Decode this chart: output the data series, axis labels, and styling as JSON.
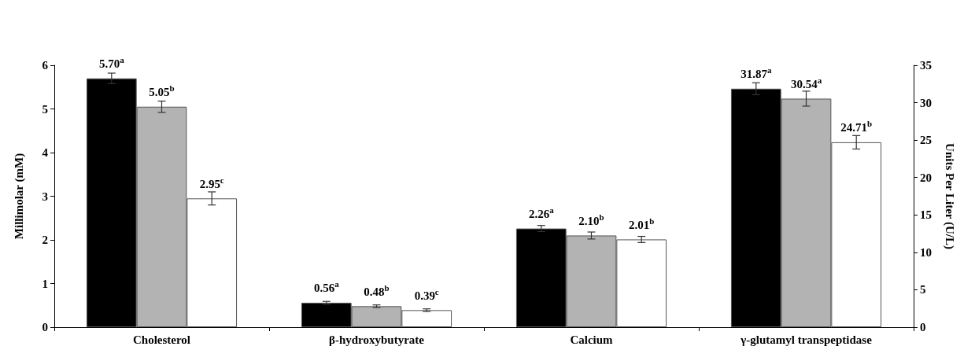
{
  "chart_data": {
    "type": "bar",
    "ylabel": "Millimolar (mM)",
    "y2label": "Units Per Liter (U/L)",
    "categories": [
      "Cholesterol",
      "β-hydroxybutyrate",
      "Calcium",
      "γ-glutamyl transpeptidase"
    ],
    "ylim": [
      0,
      6
    ],
    "yticks": [
      0,
      1,
      2,
      3,
      4,
      5,
      6
    ],
    "y2lim": [
      0,
      35
    ],
    "y2ticks": [
      0,
      5,
      10,
      15,
      20,
      25,
      30,
      35
    ],
    "series": [
      {
        "color": "#000000",
        "axis": "y",
        "values": [
          5.7,
          0.56,
          2.26,
          null
        ],
        "errors": [
          0.12,
          0.03,
          0.07,
          null
        ],
        "value_labels": [
          "5.70$^{a}$",
          "0.56$^{a}$",
          "2.26$^{a}$",
          null
        ]
      },
      {
        "color": "#b3b3b3",
        "axis": "y",
        "values": [
          5.05,
          0.48,
          2.1,
          null
        ],
        "errors": [
          0.13,
          0.03,
          0.08,
          null
        ],
        "value_labels": [
          "5.05$^{b}$",
          "0.48$^{b}$",
          "2.10$^{b}$",
          null
        ]
      },
      {
        "color": "#ffffff",
        "axis": "y",
        "values": [
          2.95,
          0.39,
          2.01,
          null
        ],
        "errors": [
          0.15,
          0.03,
          0.07,
          null
        ],
        "value_labels": [
          "2.95$^{c}$",
          "0.39$^{c}$",
          "2.01$^{b}$",
          null
        ]
      },
      {
        "color": "#000000",
        "axis": "y2",
        "values": [
          null,
          null,
          null,
          31.87
        ],
        "errors": [
          null,
          null,
          null,
          0.8
        ],
        "value_labels": [
          null,
          null,
          null,
          "31.87$^{a}$"
        ]
      },
      {
        "color": "#b3b3b3",
        "axis": "y2",
        "values": [
          null,
          null,
          null,
          30.54
        ],
        "errors": [
          null,
          null,
          null,
          1.0
        ],
        "value_labels": [
          null,
          null,
          null,
          "30.54$^{a}$"
        ]
      },
      {
        "color": "#ffffff",
        "axis": "y2",
        "values": [
          null,
          null,
          null,
          24.71
        ],
        "errors": [
          null,
          null,
          null,
          0.9
        ],
        "value_labels": [
          null,
          null,
          null,
          "24.71$^{b}$"
        ]
      }
    ]
  }
}
